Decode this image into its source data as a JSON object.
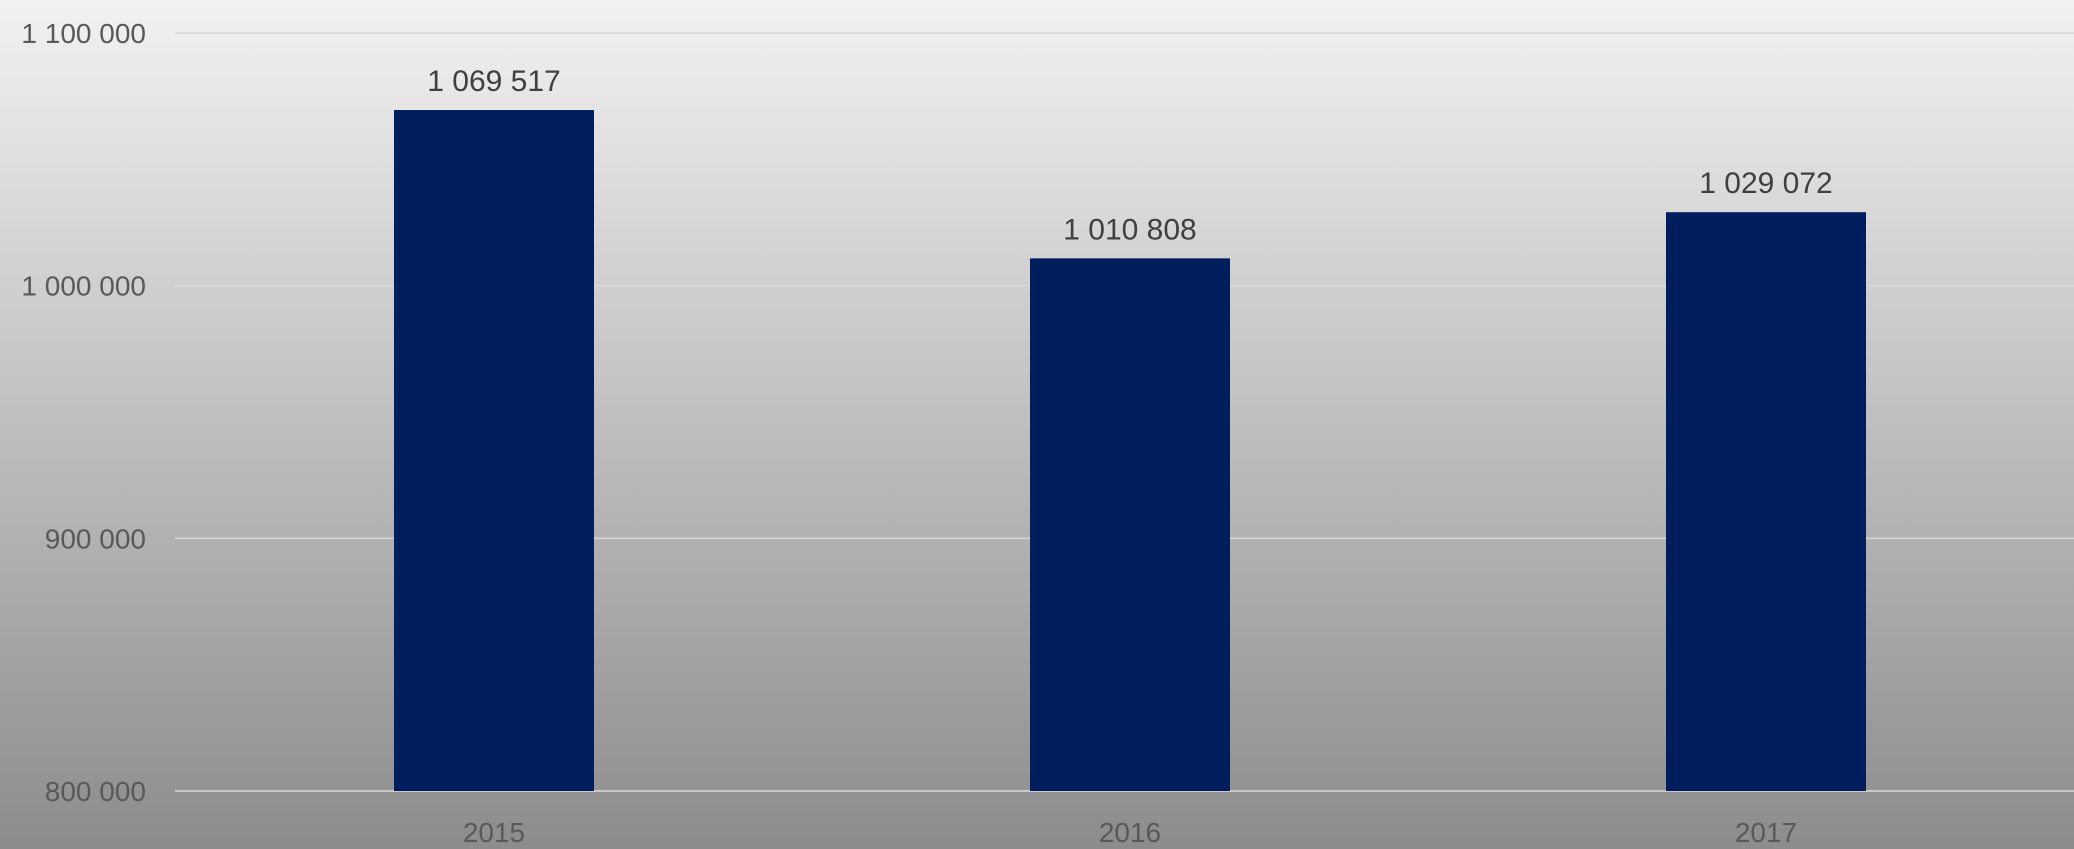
{
  "chart_data": {
    "type": "bar",
    "title": "",
    "xlabel": "",
    "ylabel": "",
    "categories": [
      "2015",
      "2016",
      "2017"
    ],
    "values": [
      1069517,
      1010808,
      1029072
    ],
    "data_labels": [
      "1 069 517",
      "1 010 808",
      "1 029 072"
    ],
    "ylim": [
      800000,
      1100000
    ],
    "yticks": [
      800000,
      900000,
      1000000,
      1100000
    ],
    "ytick_labels": [
      "800 000",
      "900 000",
      "1 000 000",
      "1 100 000"
    ],
    "grid": true,
    "legend": "none",
    "colors": {
      "bar": "#001E5E",
      "gridline": "#D9D9D9",
      "background_top": "#F2F2F2",
      "background_bottom": "#8C8C8C"
    }
  }
}
